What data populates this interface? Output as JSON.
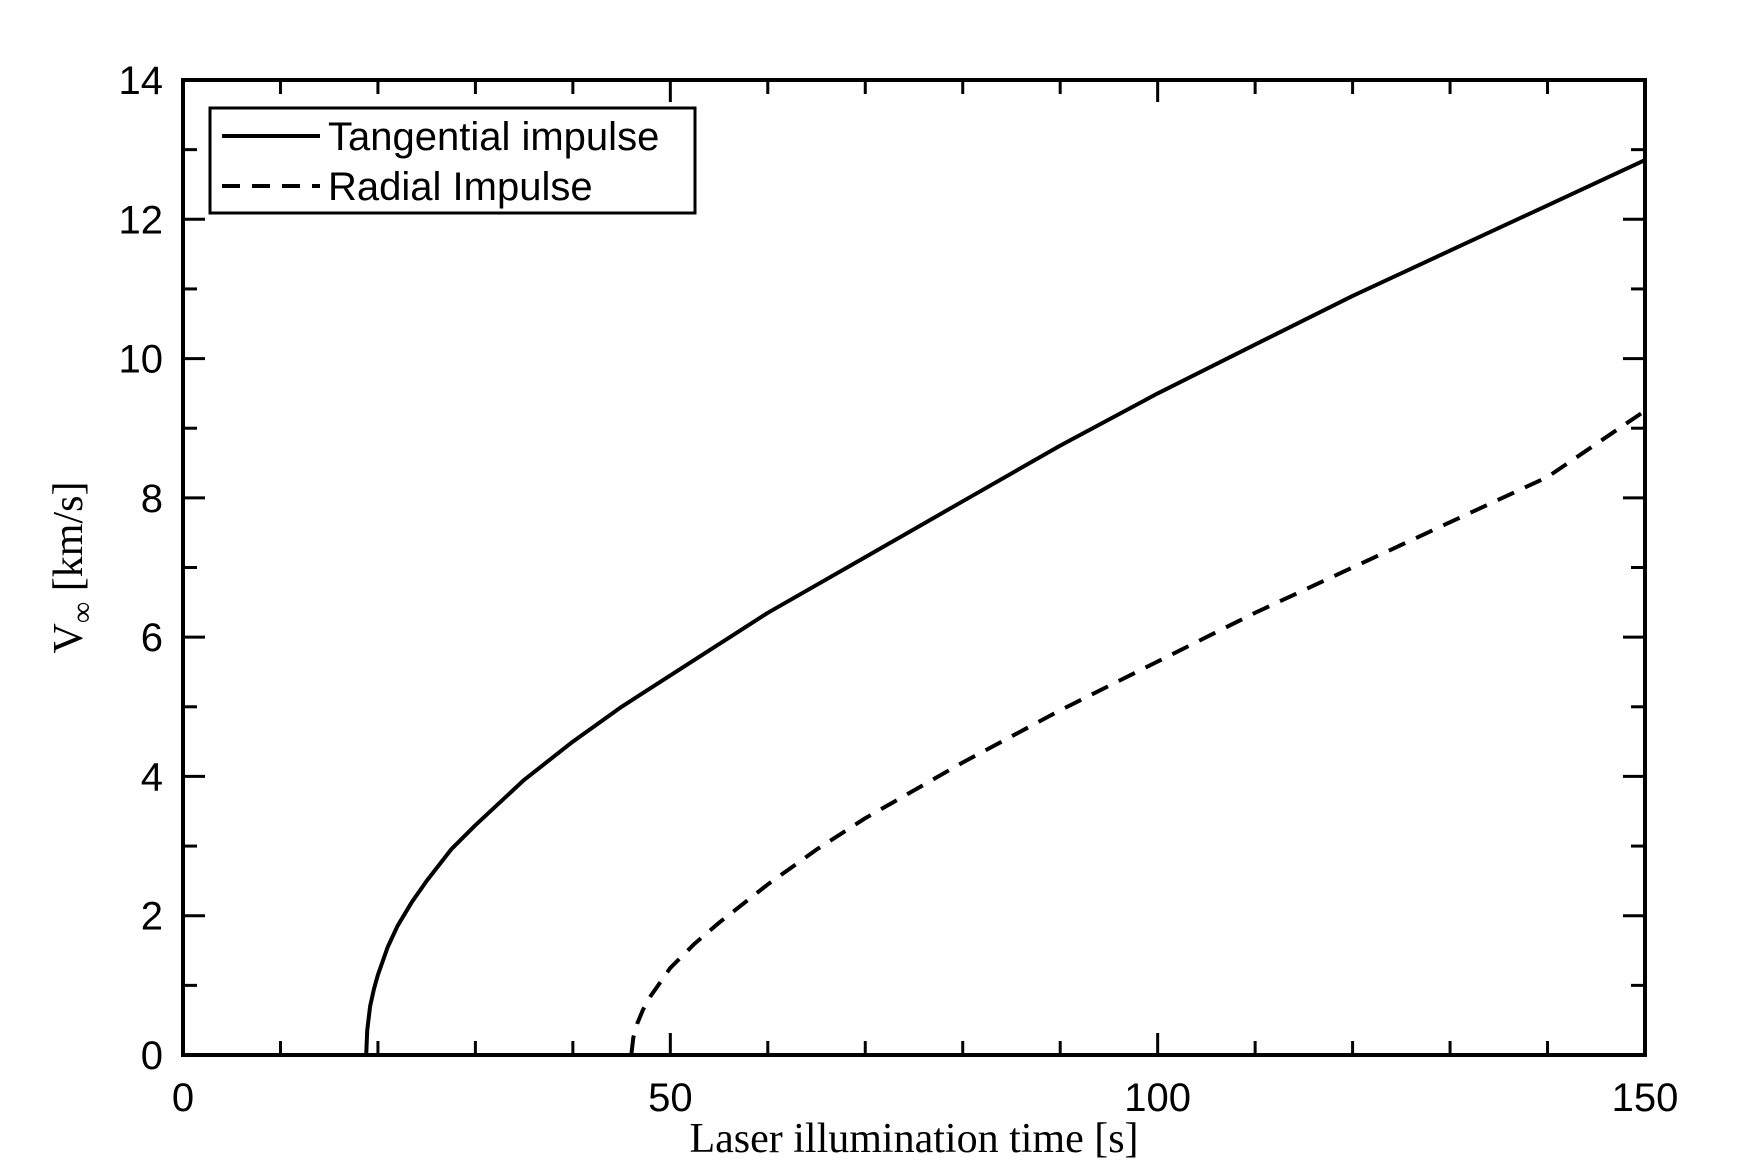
{
  "chart_data": {
    "type": "line",
    "title": "",
    "xlabel": "Laser illumination time [s]",
    "ylabel": "V",
    "ylabel_sub": "∞",
    "ylabel_unit": " [km/s]",
    "xlim": [
      0,
      150
    ],
    "ylim": [
      0,
      14
    ],
    "xticks": [
      "0",
      "50",
      "100",
      "150"
    ],
    "yticks": [
      "0",
      "2",
      "4",
      "6",
      "8",
      "10",
      "12",
      "14"
    ],
    "grid": false,
    "legend_position": "top-left",
    "series": [
      {
        "name": "Tangential impulse",
        "style": "solid",
        "color": "#000000",
        "x": [
          0,
          18.8,
          18.9,
          19.2,
          19.6,
          20.0,
          21.0,
          22.0,
          23.5,
          25.0,
          27.5,
          30.0,
          35.0,
          40.0,
          45.0,
          50.0,
          60.0,
          70.0,
          80.0,
          90.0,
          100.0,
          110.0,
          120.0,
          130.0,
          140.0,
          150.0
        ],
        "y": [
          0,
          0,
          0.35,
          0.7,
          0.95,
          1.15,
          1.55,
          1.85,
          2.2,
          2.5,
          2.95,
          3.3,
          3.95,
          4.5,
          5.0,
          5.45,
          6.35,
          7.15,
          7.95,
          8.75,
          9.5,
          10.2,
          10.9,
          11.55,
          12.2,
          12.85
        ]
      },
      {
        "name": "Radial Impulse",
        "style": "dashed",
        "color": "#000000",
        "x": [
          0,
          46.0,
          46.2,
          46.6,
          47.2,
          48.0,
          49.0,
          50.0,
          52.5,
          55.0,
          60.0,
          65.0,
          70.0,
          80.0,
          90.0,
          100.0,
          110.0,
          120.0,
          130.0,
          140.0,
          150.0
        ],
        "y": [
          0,
          0,
          0.25,
          0.45,
          0.65,
          0.85,
          1.05,
          1.25,
          1.6,
          1.9,
          2.45,
          2.95,
          3.4,
          4.2,
          4.95,
          5.65,
          6.35,
          7.0,
          7.65,
          8.3,
          9.25
        ]
      }
    ]
  }
}
